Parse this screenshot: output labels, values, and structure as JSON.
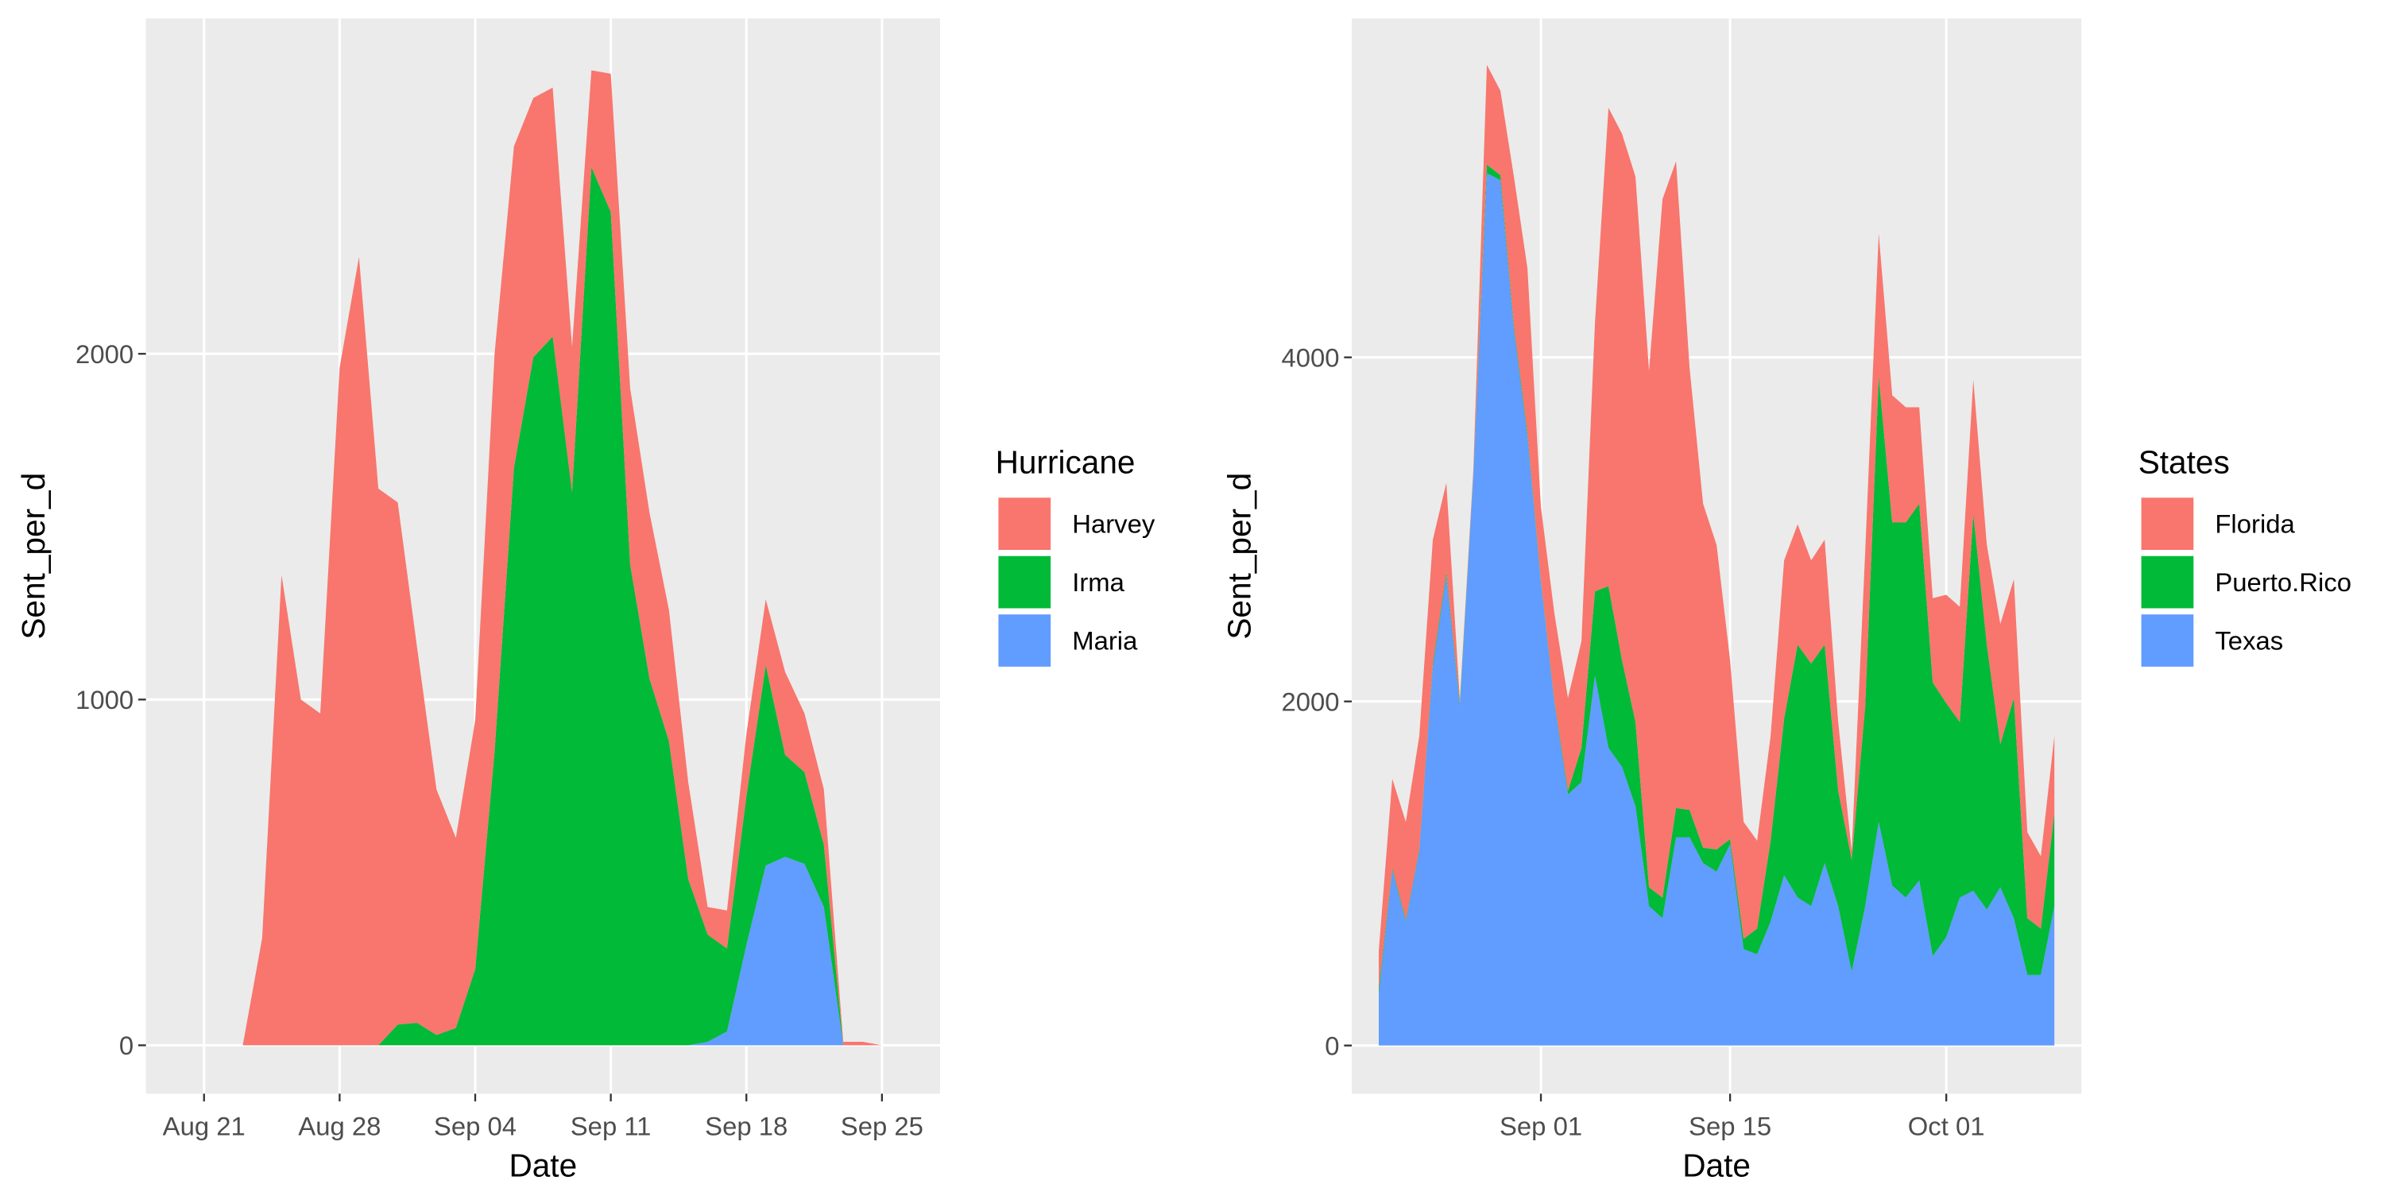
{
  "chart_data": [
    {
      "type": "area",
      "stacked": true,
      "xlabel": "Date",
      "ylabel": "Sent_per_d",
      "legend_title": "Hurricane",
      "grid": true,
      "x": [
        "Aug 22",
        "Aug 23",
        "Aug 24",
        "Aug 25",
        "Aug 26",
        "Aug 27",
        "Aug 28",
        "Aug 29",
        "Aug 30",
        "Aug 31",
        "Sep 01",
        "Sep 02",
        "Sep 03",
        "Sep 04",
        "Sep 05",
        "Sep 06",
        "Sep 07",
        "Sep 08",
        "Sep 09",
        "Sep 10",
        "Sep 11",
        "Sep 12",
        "Sep 13",
        "Sep 14",
        "Sep 15",
        "Sep 16",
        "Sep 17",
        "Sep 18",
        "Sep 19",
        "Sep 20",
        "Sep 21",
        "Sep 22",
        "Sep 23",
        "Sep 24",
        "Sep 25"
      ],
      "series": [
        {
          "name": "Harvey",
          "color": "#F8766D",
          "values": [
            0,
            0,
            310,
            1360,
            1000,
            960,
            1960,
            2280,
            1610,
            1510,
            1085,
            710,
            550,
            720,
            1150,
            930,
            750,
            720,
            420,
            280,
            400,
            510,
            480,
            380,
            280,
            80,
            110,
            180,
            190,
            240,
            170,
            160,
            10,
            10,
            0
          ]
        },
        {
          "name": "Irma",
          "color": "#00BA38",
          "values": [
            0,
            0,
            0,
            0,
            0,
            0,
            0,
            0,
            0,
            60,
            65,
            30,
            50,
            220,
            850,
            1670,
            1990,
            2050,
            1600,
            2540,
            2410,
            1390,
            1060,
            880,
            480,
            310,
            240,
            430,
            580,
            295,
            265,
            180,
            0,
            0,
            0
          ]
        },
        {
          "name": "Maria",
          "color": "#619CFF",
          "values": [
            0,
            0,
            0,
            0,
            0,
            0,
            0,
            0,
            0,
            0,
            0,
            0,
            0,
            0,
            0,
            0,
            0,
            0,
            0,
            0,
            0,
            0,
            0,
            0,
            0,
            10,
            40,
            290,
            520,
            545,
            525,
            400,
            0,
            0,
            0
          ]
        }
      ],
      "xlim": [
        "Aug 18",
        "Sep 28"
      ],
      "xticks": [
        "Aug 21",
        "Aug 28",
        "Sep 04",
        "Sep 11",
        "Sep 18",
        "Sep 25"
      ],
      "ylim": [
        -140,
        2970
      ],
      "yticks": [
        0,
        1000,
        2000
      ]
    },
    {
      "type": "area",
      "stacked": true,
      "xlabel": "Date",
      "ylabel": "Sent_per_d",
      "legend_title": "States",
      "grid": true,
      "x": [
        "Aug 20",
        "Aug 21",
        "Aug 22",
        "Aug 23",
        "Aug 24",
        "Aug 25",
        "Aug 26",
        "Aug 27",
        "Aug 28",
        "Aug 29",
        "Aug 30",
        "Aug 31",
        "Sep 01",
        "Sep 02",
        "Sep 03",
        "Sep 04",
        "Sep 05",
        "Sep 06",
        "Sep 07",
        "Sep 08",
        "Sep 09",
        "Sep 10",
        "Sep 11",
        "Sep 12",
        "Sep 13",
        "Sep 14",
        "Sep 15",
        "Sep 16",
        "Sep 17",
        "Sep 18",
        "Sep 19",
        "Sep 20",
        "Sep 21",
        "Sep 22",
        "Sep 23",
        "Sep 24",
        "Sep 25",
        "Sep 26",
        "Sep 27",
        "Sep 28",
        "Sep 29",
        "Sep 30",
        "Oct 01",
        "Oct 02",
        "Oct 03",
        "Oct 04",
        "Oct 05",
        "Oct 06",
        "Oct 07",
        "Oct 08",
        "Oct 09"
      ],
      "series": [
        {
          "name": "Florida",
          "color": "#F8766D",
          "values": [
            220,
            520,
            570,
            660,
            720,
            520,
            20,
            30,
            580,
            490,
            870,
            960,
            430,
            510,
            540,
            620,
            1560,
            2780,
            3060,
            3170,
            3000,
            4060,
            3760,
            2570,
            2000,
            1770,
            1040,
            680,
            510,
            610,
            920,
            700,
            600,
            610,
            400,
            50,
            900,
            830,
            740,
            670,
            560,
            490,
            630,
            670,
            780,
            580,
            700,
            690,
            500,
            420,
            450
          ]
        },
        {
          "name": "Puerto.Rico",
          "color": "#00BA38",
          "values": [
            30,
            10,
            10,
            10,
            20,
            20,
            20,
            10,
            50,
            30,
            20,
            20,
            10,
            10,
            20,
            200,
            490,
            940,
            620,
            490,
            110,
            120,
            170,
            160,
            90,
            130,
            30,
            60,
            150,
            470,
            910,
            1470,
            1410,
            1270,
            670,
            650,
            1160,
            2590,
            2110,
            2180,
            2190,
            1590,
            1360,
            1020,
            2190,
            1540,
            830,
            1280,
            330,
            270,
            540
          ]
        },
        {
          "name": "Texas",
          "color": "#619CFF",
          "values": [
            300,
            1020,
            720,
            1130,
            2200,
            2730,
            1970,
            3310,
            5070,
            5030,
            4160,
            3540,
            2690,
            1990,
            1460,
            1530,
            2150,
            1730,
            1620,
            1390,
            810,
            740,
            1210,
            1210,
            1060,
            1010,
            1170,
            560,
            530,
            720,
            990,
            860,
            810,
            1060,
            810,
            430,
            810,
            1300,
            930,
            860,
            960,
            520,
            630,
            860,
            900,
            790,
            920,
            740,
            410,
            410,
            810
          ]
        }
      ],
      "xlim": [
        "Aug 18",
        "Oct 11"
      ],
      "xticks": [
        "Sep 01",
        "Sep 15",
        "Oct 01"
      ],
      "ylim": [
        -280,
        5970
      ],
      "yticks": [
        0,
        2000,
        4000
      ]
    }
  ]
}
